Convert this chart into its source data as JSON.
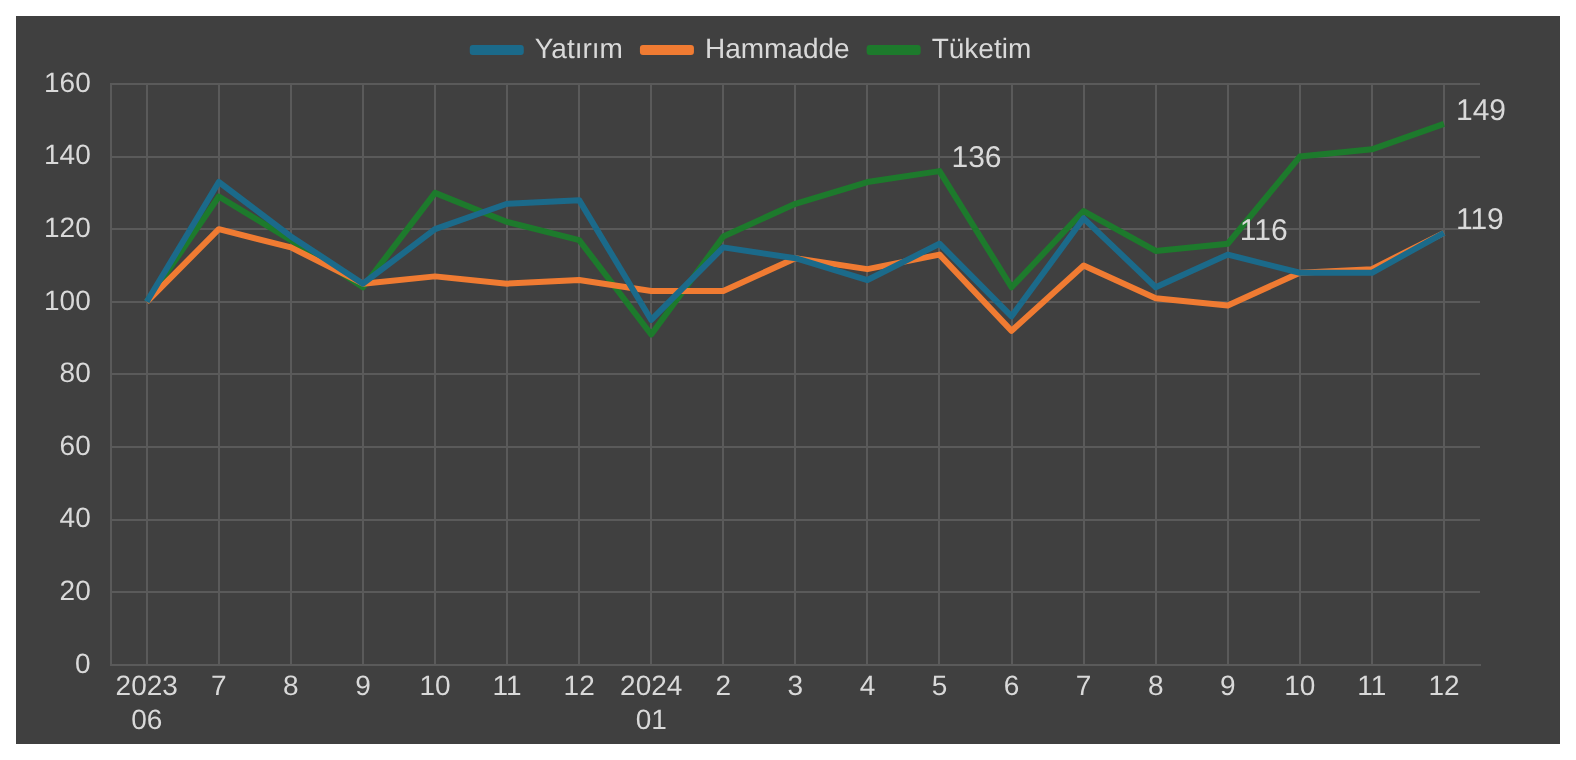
{
  "chart_data": {
    "type": "line",
    "categories": [
      "2023\n06",
      "7",
      "8",
      "9",
      "10",
      "11",
      "12",
      "2024\n01",
      "2",
      "3",
      "4",
      "5",
      "6",
      "7",
      "8",
      "9",
      "10",
      "11",
      "12"
    ],
    "series": [
      {
        "name": "Yatırım",
        "color": "#1b6a8a",
        "values": [
          100,
          133,
          118,
          105,
          120,
          127,
          128,
          95,
          115,
          112,
          106,
          116,
          96,
          123,
          104,
          113,
          108,
          108,
          119
        ]
      },
      {
        "name": "Hammadde",
        "color": "#f07b32",
        "values": [
          100,
          120,
          115,
          105,
          107,
          105,
          106,
          103,
          103,
          112,
          109,
          113,
          92,
          110,
          101,
          99,
          108,
          109,
          119
        ],
        "value_labels": [
          null,
          null,
          null,
          null,
          null,
          null,
          null,
          null,
          null,
          null,
          null,
          null,
          null,
          null,
          null,
          null,
          null,
          null,
          "119"
        ]
      },
      {
        "name": "Tüketim",
        "color": "#1d7a2c",
        "values": [
          100,
          129,
          117,
          104,
          130,
          122,
          117,
          91,
          118,
          127,
          133,
          136,
          104,
          125,
          114,
          116,
          140,
          142,
          149
        ],
        "value_labels": [
          null,
          null,
          null,
          null,
          null,
          null,
          null,
          null,
          null,
          null,
          null,
          "136",
          null,
          null,
          null,
          "116",
          null,
          null,
          "149"
        ]
      }
    ],
    "ylim": [
      0,
      160
    ],
    "yticks": [
      0,
      20,
      40,
      60,
      80,
      100,
      120,
      140,
      160
    ],
    "grid": true,
    "legend": "top",
    "marker": "none",
    "line_style": "solid"
  }
}
